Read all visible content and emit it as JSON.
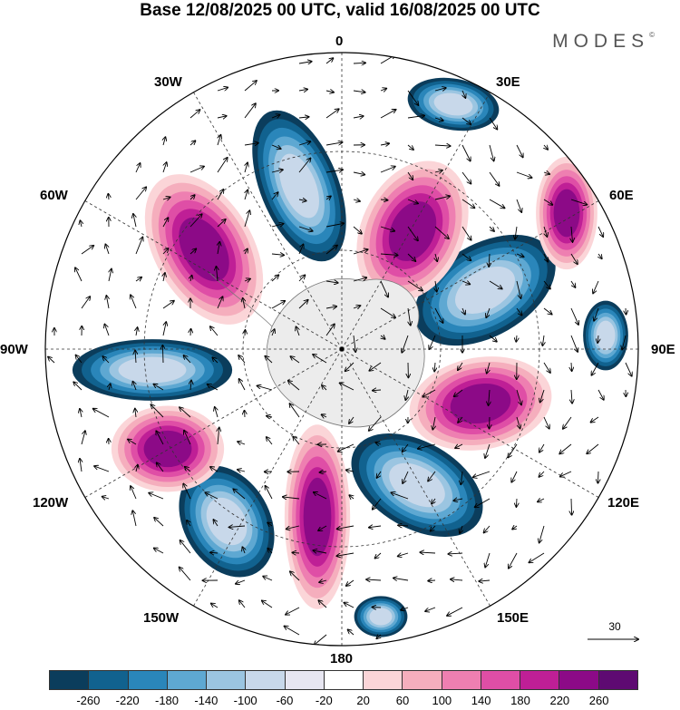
{
  "header": {
    "title": "Base 12/08/2025 00 UTC, valid 16/08/2025 00 UTC",
    "brand": "MODES",
    "brand_mark": "©"
  },
  "map": {
    "projection": "south polar stereographic",
    "longitude_labels": [
      "0",
      "30E",
      "60E",
      "90E",
      "120E",
      "150E",
      "180",
      "150W",
      "120W",
      "90W",
      "60W",
      "30W"
    ],
    "reference_vector": {
      "value": "30"
    }
  },
  "colorbar": {
    "colors": [
      "#0b3d5c",
      "#11628f",
      "#2a86ba",
      "#5ea8d2",
      "#9bc5e1",
      "#c8d8ea",
      "#e7e6f1",
      "#ffffff",
      "#fbd5d8",
      "#f5aebd",
      "#ee7fb1",
      "#df4ea6",
      "#bf1f96",
      "#8c0a87",
      "#5e0a72"
    ],
    "levels": [
      "-260",
      "-220",
      "-180",
      "-140",
      "-100",
      "-60",
      "-20",
      "20",
      "60",
      "100",
      "140",
      "180",
      "220",
      "260"
    ]
  }
}
